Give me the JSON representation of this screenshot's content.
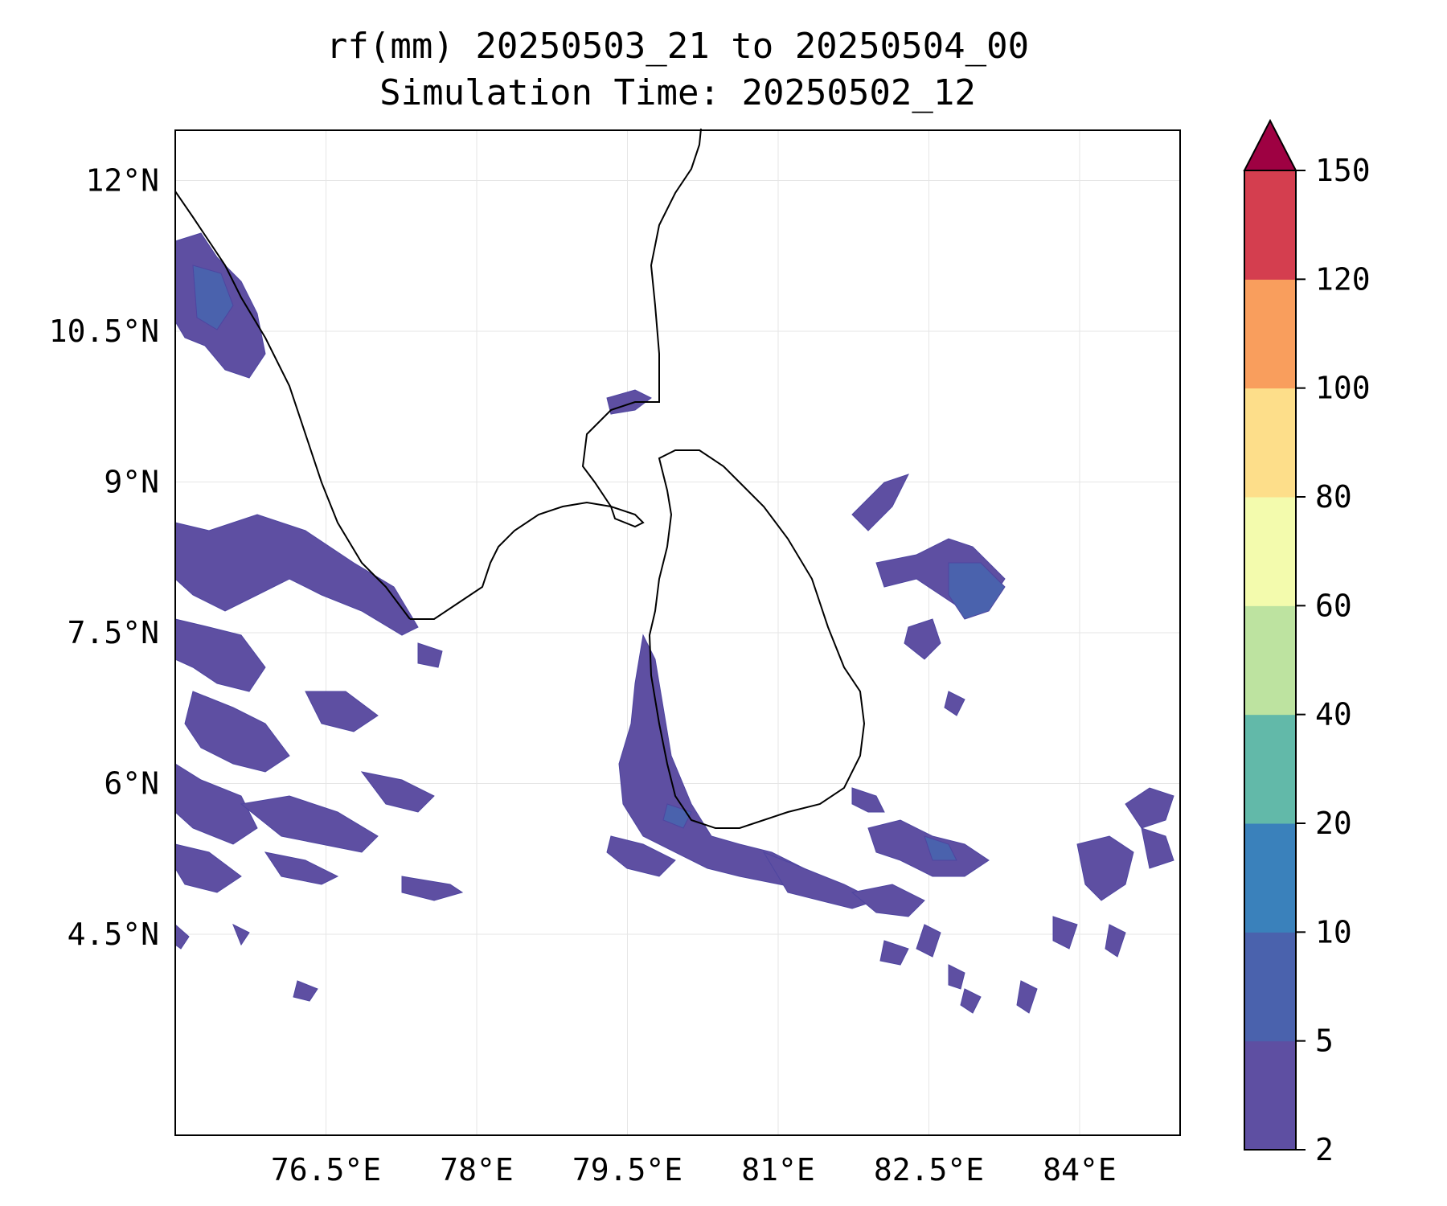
{
  "title": {
    "line1": "rf(mm) 20250503_21 to 20250504_00",
    "line2": "Simulation Time: 20250502_12"
  },
  "map": {
    "lon_range": [
      75.0,
      85.0
    ],
    "lat_range": [
      2.5,
      12.5
    ],
    "gridlines": true,
    "lon_ticks": [
      {
        "value": 76.5,
        "label": "76.5°E"
      },
      {
        "value": 78.0,
        "label": "78°E"
      },
      {
        "value": 79.5,
        "label": "79.5°E"
      },
      {
        "value": 81.0,
        "label": "81°E"
      },
      {
        "value": 82.5,
        "label": "82.5°E"
      },
      {
        "value": 84.0,
        "label": "84°E"
      }
    ],
    "lat_ticks": [
      {
        "value": 12.0,
        "label": "12°N"
      },
      {
        "value": 10.5,
        "label": "10.5°N"
      },
      {
        "value": 9.0,
        "label": "9°N"
      },
      {
        "value": 7.5,
        "label": "7.5°N"
      },
      {
        "value": 6.0,
        "label": "6°N"
      },
      {
        "value": 4.5,
        "label": "4.5°N"
      }
    ],
    "coast_color": "#000000"
  },
  "colorbar": {
    "extend": "max",
    "extend_color": "#9e0142",
    "levels": [
      2,
      5,
      10,
      20,
      40,
      60,
      80,
      100,
      120,
      150
    ],
    "colors": [
      "#5e4fa2",
      "#4a62ad",
      "#3a81bb",
      "#62b9a9",
      "#bde3a0",
      "#f3fbad",
      "#fdde8a",
      "#f99e5d",
      "#d43e4f"
    ],
    "tick_labels": [
      "2",
      "5",
      "10",
      "20",
      "40",
      "60",
      "80",
      "100",
      "120",
      "150"
    ]
  }
}
